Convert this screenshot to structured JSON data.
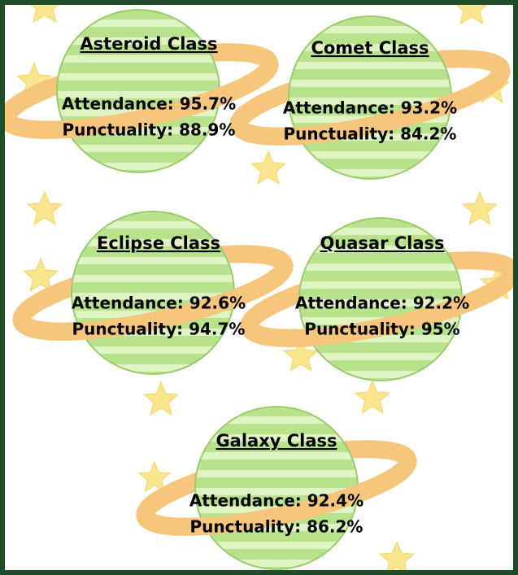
{
  "classes": [
    {
      "name": "Asteroid Class",
      "attendance": "Attendance: 95.7%",
      "punctuality": "Punctuality: 88.9%"
    },
    {
      "name": "Comet Class",
      "attendance": "Attendance: 93.2%",
      "punctuality": "Punctuality: 84.2%"
    },
    {
      "name": "Eclipse Class",
      "attendance": "Attendance: 92.6%",
      "punctuality": "Punctuality: 94.7%"
    },
    {
      "name": "Quasar Class",
      "attendance": "Attendance: 92.2%",
      "punctuality": "Punctuality: 95%"
    },
    {
      "name": "Galaxy Class",
      "attendance": "Attendance: 92.4%",
      "punctuality": "Punctuality: 86.2%"
    }
  ]
}
